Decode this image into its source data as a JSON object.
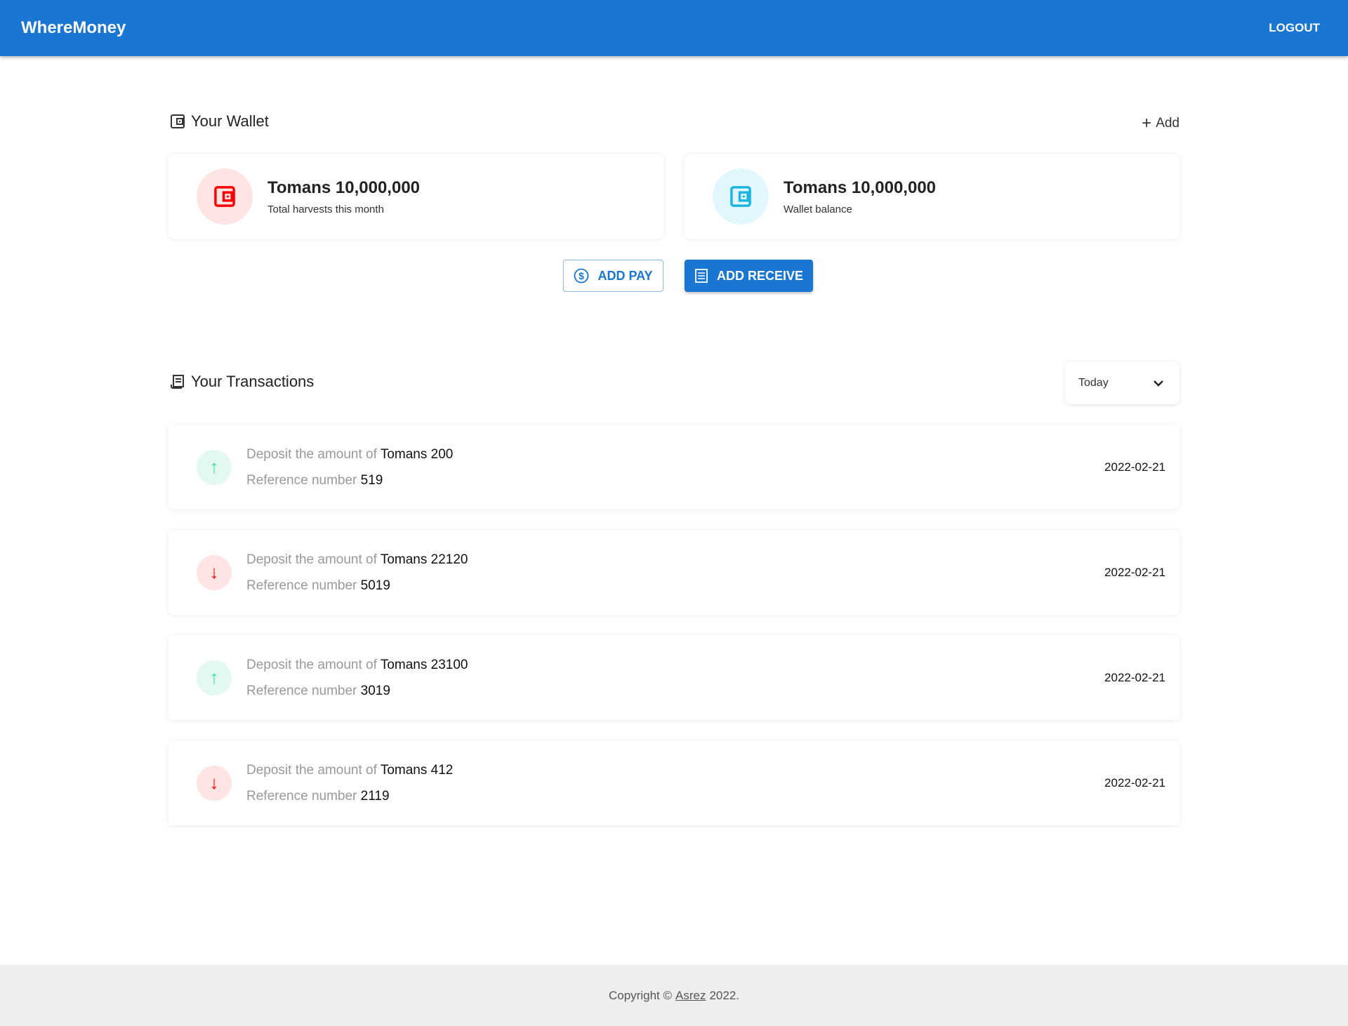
{
  "header": {
    "brand": "WhereMoney",
    "logout": "LOGOUT"
  },
  "wallet": {
    "title": "Your Wallet",
    "add": "Add",
    "cards": [
      {
        "value": "Tomans 10,000,000",
        "label": "Total harvests this month",
        "color": "#ff0000",
        "bg": "#ffe4e4"
      },
      {
        "value": "Tomans 10,000,000",
        "label": "Wallet balance",
        "color": "#1cb5e0",
        "bg": "#e2f7fd"
      }
    ],
    "add_pay": "ADD PAY",
    "add_receive": "ADD RECEIVE"
  },
  "transactions": {
    "title": "Your Transactions",
    "filter": "Today",
    "prefix": "Deposit the amount of",
    "ref_prefix": "Reference number",
    "items": [
      {
        "direction": "up",
        "amount": "Tomans 200",
        "ref": "519",
        "date": "2022-02-21"
      },
      {
        "direction": "down",
        "amount": "Tomans 22120",
        "ref": "5019",
        "date": "2022-02-21"
      },
      {
        "direction": "up",
        "amount": "Tomans 23100",
        "ref": "3019",
        "date": "2022-02-21"
      },
      {
        "direction": "down",
        "amount": "Tomans 412",
        "ref": "2119",
        "date": "2022-02-21"
      }
    ]
  },
  "footer": {
    "prefix": "Copyright ©",
    "link": "Asrez",
    "suffix": "2022."
  },
  "colors": {
    "primary": "#1976d2",
    "up": "#2ee59d",
    "down": "#ff0000"
  }
}
